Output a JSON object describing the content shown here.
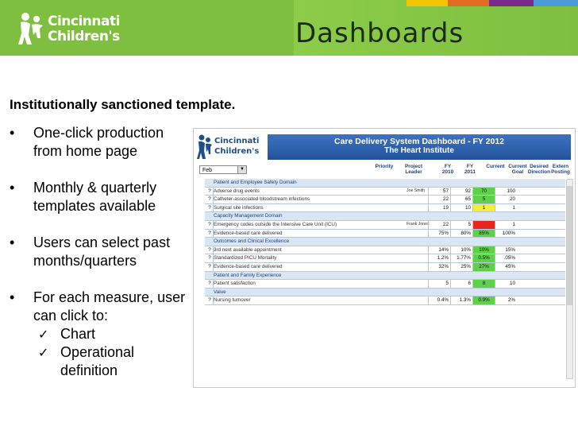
{
  "header": {
    "title": "Dashboards",
    "logo_line1": "Cincinnati",
    "logo_line2": "Children's",
    "logo_icon": "children-figure-icon",
    "colors": {
      "green": "#7fbf3f",
      "strip": [
        "#f4c400",
        "#e26c22",
        "#7a2a8c",
        "#4a9bd8"
      ]
    }
  },
  "content": {
    "subtitle": "Institutionally sanctioned template.",
    "bullets": [
      {
        "text": "One-click production from home page"
      },
      {
        "text": "Monthly & quarterly templates available"
      },
      {
        "text": "Users can select past months/quarters"
      },
      {
        "text": "For each measure, user can click to:",
        "checks": [
          "Chart",
          "Operational definition"
        ]
      }
    ]
  },
  "dashboard": {
    "logo_line1": "Cincinnati",
    "logo_line2": "Children's",
    "title_line1": "Care Delivery System Dashboard - FY 2012",
    "title_line2": "The Heart Institute",
    "month": "Feb",
    "columns": [
      {
        "line1": "Priority",
        "line2": ""
      },
      {
        "line1": "Project",
        "line2": "Leader"
      },
      {
        "line1": "FY",
        "line2": "2010"
      },
      {
        "line1": "FY",
        "line2": "2011"
      },
      {
        "line1": "Current",
        "line2": ""
      },
      {
        "line1": "Current",
        "line2": "Goal"
      },
      {
        "line1": "Desired",
        "line2": "Direction"
      },
      {
        "line1": "Extern",
        "line2": "Posting"
      }
    ],
    "rows": [
      {
        "type": "domain",
        "name": "Patient and Employee Safety Domain"
      },
      {
        "type": "measure",
        "q": "?",
        "name": "Adverse drug events",
        "leader": "Joe Smith",
        "fy10": "57",
        "fy11": "92",
        "cur": "70",
        "goal": "100",
        "status": "green"
      },
      {
        "type": "measure",
        "q": "?",
        "name": "Catheter-associated bloodstream infections",
        "leader": "",
        "fy10": "22",
        "fy11": "65",
        "cur": "5",
        "goal": "20",
        "status": "green"
      },
      {
        "type": "measure",
        "q": "?",
        "name": "Surgical site infections",
        "leader": "",
        "fy10": "19",
        "fy11": "10",
        "cur": "1",
        "goal": "1",
        "status": "yellow"
      },
      {
        "type": "domain",
        "name": "Capacity Management Domain"
      },
      {
        "type": "measure",
        "q": "?",
        "name": "Emergency codes outside the Intensive Care Unit (ICU)",
        "leader": "Frank Jones",
        "fy10": "22",
        "fy11": "5",
        "cur": "",
        "goal": "1",
        "status": "red"
      },
      {
        "type": "measure",
        "q": "?",
        "name": "Evidence-based care delivered",
        "leader": "",
        "fy10": "75%",
        "fy11": "80%",
        "cur": "85%",
        "goal": "100%",
        "status": "green"
      },
      {
        "type": "domain",
        "name": "Outcomes and Clinical Excellence"
      },
      {
        "type": "measure",
        "q": "?",
        "name": "3rd next available appointment",
        "leader": "",
        "fy10": "14%",
        "fy11": "10%",
        "cur": "10%",
        "goal": "15%",
        "status": "green"
      },
      {
        "type": "measure",
        "q": "?",
        "name": "Standardized PICU Mortality",
        "leader": "",
        "fy10": "1.2%",
        "fy11": "1.77%",
        "cur": "0.5%",
        "goal": ".05%",
        "status": "green"
      },
      {
        "type": "measure",
        "q": "?",
        "name": "Evidence-based care delivered",
        "leader": "",
        "fy10": "32%",
        "fy11": "25%",
        "cur": "27%",
        "goal": "45%",
        "status": "green"
      },
      {
        "type": "domain",
        "name": "Patient and Family Experience"
      },
      {
        "type": "measure",
        "q": "?",
        "name": "Patient satisfaction",
        "leader": "",
        "fy10": "5",
        "fy11": "6",
        "cur": "8",
        "goal": "10",
        "status": "green"
      },
      {
        "type": "domain",
        "name": "Value"
      },
      {
        "type": "measure",
        "q": "?",
        "name": "Nursing turnover",
        "leader": "",
        "fy10": "0.4%",
        "fy11": "1.3%",
        "cur": "0.9%",
        "goal": "2%",
        "status": "green"
      }
    ],
    "status_colors": {
      "green": "#5fd04a",
      "yellow": "#f2ee3a",
      "red": "#e8261c"
    }
  }
}
